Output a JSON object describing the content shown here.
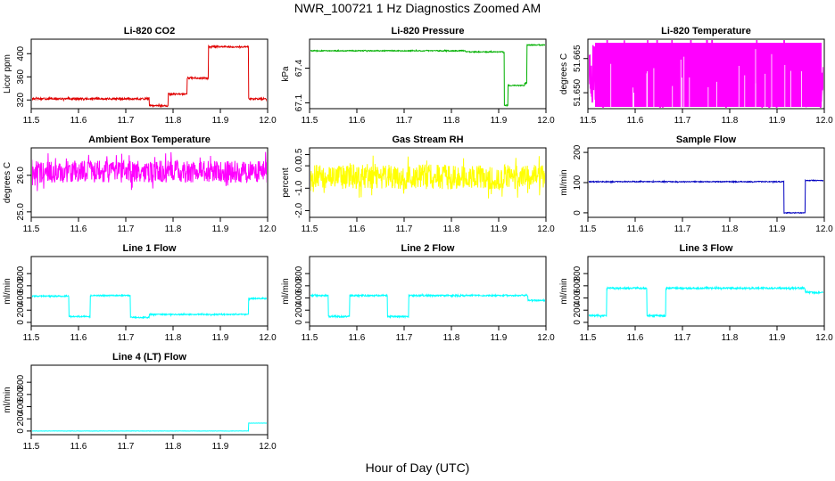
{
  "page": {
    "title": "NWR_100721  1 Hz Diagnostics Zoomed AM",
    "xlabel": "Hour of Day (UTC)"
  },
  "chart_data": [
    {
      "type": "line",
      "title": "Li-820 CO2",
      "ylabel": "Licor ppm",
      "color": "#e00000",
      "xlim": [
        11.5,
        12.0
      ],
      "ylim": [
        305,
        425
      ],
      "yticks": [
        "320",
        "360",
        "400"
      ],
      "xticks": [
        "11.5",
        "11.6",
        "11.7",
        "11.8",
        "11.9",
        "12.0"
      ],
      "steps": [
        [
          11.5,
          322
        ],
        [
          11.75,
          310
        ],
        [
          11.79,
          330
        ],
        [
          11.83,
          358
        ],
        [
          11.875,
          412
        ],
        [
          11.96,
          322
        ],
        [
          12.0,
          322
        ]
      ],
      "noise": 1.5
    },
    {
      "type": "line",
      "title": "Li-820 Pressure",
      "ylabel": "kPa",
      "color": "#00b000",
      "xlim": [
        11.5,
        12.0
      ],
      "ylim": [
        67.05,
        67.65
      ],
      "yticks": [
        "67.1",
        "67.4"
      ],
      "xticks": [
        "11.5",
        "11.6",
        "11.7",
        "11.8",
        "11.9",
        "12.0"
      ],
      "steps": [
        [
          11.5,
          67.55
        ],
        [
          11.83,
          67.54
        ],
        [
          11.91,
          67.53
        ],
        [
          11.912,
          67.08
        ],
        [
          11.92,
          67.25
        ],
        [
          11.955,
          67.27
        ],
        [
          11.96,
          67.6
        ],
        [
          12.0,
          67.6
        ]
      ],
      "noise": 0.004
    },
    {
      "type": "line",
      "title": "Li-820 Temperature",
      "ylabel": "degrees C",
      "color": "#ff00ff",
      "xlim": [
        11.5,
        12.0
      ],
      "ylim": [
        51.643,
        51.6735
      ],
      "yticks": [
        "51.650",
        "51.665"
      ],
      "xticks": [
        "11.5",
        "11.6",
        "11.7",
        "11.8",
        "11.9",
        "12.0"
      ],
      "steps": [
        [
          11.5,
          51.658
        ],
        [
          12.0,
          51.658
        ]
      ],
      "noise": 0.0135,
      "fill": true
    },
    {
      "type": "line",
      "title": "Ambient Box Temperature",
      "ylabel": "degrees C",
      "color": "#ff00ff",
      "xlim": [
        11.5,
        12.0
      ],
      "ylim": [
        24.85,
        26.75
      ],
      "yticks": [
        "25.0",
        "26.0"
      ],
      "xticks": [
        "11.5",
        "11.6",
        "11.7",
        "11.8",
        "11.9",
        "12.0"
      ],
      "steps": [
        [
          11.5,
          26.1
        ],
        [
          12.0,
          26.1
        ]
      ],
      "noise": 0.3
    },
    {
      "type": "line",
      "title": "Gas Stream RH",
      "ylabel": "percent",
      "color": "#ffff00",
      "xlim": [
        11.5,
        12.0
      ],
      "ylim": [
        -2.3,
        0.8
      ],
      "yticks": [
        "-2.0",
        "-1.0",
        "0.0",
        "0.5"
      ],
      "xticks": [
        "11.5",
        "11.6",
        "11.7",
        "11.8",
        "11.9",
        "12.0"
      ],
      "steps": [
        [
          11.5,
          -0.5
        ],
        [
          12.0,
          -0.5
        ]
      ],
      "noise": 0.55
    },
    {
      "type": "line",
      "title": "Sample Flow",
      "ylabel": "ml/min",
      "color": "#0000c0",
      "xlim": [
        11.5,
        12.0
      ],
      "ylim": [
        -15,
        215
      ],
      "yticks": [
        "0",
        "100",
        "200"
      ],
      "xticks": [
        "11.5",
        "11.6",
        "11.7",
        "11.8",
        "11.9",
        "12.0"
      ],
      "steps": [
        [
          11.5,
          103
        ],
        [
          11.91,
          103
        ],
        [
          11.915,
          0
        ],
        [
          11.955,
          0
        ],
        [
          11.96,
          107
        ],
        [
          12.0,
          103
        ]
      ],
      "noise": 1.5
    },
    {
      "type": "line",
      "title": "Line 1 Flow",
      "ylabel": "ml/min",
      "color": "#00ffff",
      "xlim": [
        11.5,
        12.0
      ],
      "ylim": [
        -60,
        1080
      ],
      "yticks": [
        "0",
        "200",
        "400",
        "600",
        "800"
      ],
      "xticks": [
        "11.5",
        "11.6",
        "11.7",
        "11.8",
        "11.9",
        "12.0"
      ],
      "steps": [
        [
          11.5,
          430
        ],
        [
          11.58,
          95
        ],
        [
          11.625,
          440
        ],
        [
          11.71,
          80
        ],
        [
          11.75,
          130
        ],
        [
          11.955,
          130
        ],
        [
          11.96,
          390
        ],
        [
          12.0,
          390
        ]
      ],
      "noise": 10
    },
    {
      "type": "line",
      "title": "Line 2 Flow",
      "ylabel": "ml/min",
      "color": "#00ffff",
      "xlim": [
        11.5,
        12.0
      ],
      "ylim": [
        -60,
        1080
      ],
      "yticks": [
        "0",
        "200",
        "400",
        "600",
        "800"
      ],
      "xticks": [
        "11.5",
        "11.6",
        "11.7",
        "11.8",
        "11.9",
        "12.0"
      ],
      "steps": [
        [
          11.5,
          440
        ],
        [
          11.54,
          95
        ],
        [
          11.585,
          440
        ],
        [
          11.665,
          95
        ],
        [
          11.71,
          440
        ],
        [
          11.96,
          440
        ],
        [
          11.962,
          360
        ],
        [
          12.0,
          360
        ]
      ],
      "noise": 12
    },
    {
      "type": "line",
      "title": "Line 3 Flow",
      "ylabel": "ml/min",
      "color": "#00ffff",
      "xlim": [
        11.5,
        12.0
      ],
      "ylim": [
        -60,
        1080
      ],
      "yticks": [
        "0",
        "200",
        "400",
        "600",
        "800"
      ],
      "xticks": [
        "11.5",
        "11.6",
        "11.7",
        "11.8",
        "11.9",
        "12.0"
      ],
      "steps": [
        [
          11.5,
          110
        ],
        [
          11.54,
          560
        ],
        [
          11.625,
          110
        ],
        [
          11.665,
          560
        ],
        [
          11.955,
          560
        ],
        [
          11.96,
          490
        ],
        [
          12.0,
          490
        ]
      ],
      "noise": 14
    },
    {
      "type": "line",
      "title": "Line 4 (LT) Flow",
      "ylabel": "ml/min",
      "color": "#00ffff",
      "xlim": [
        11.5,
        12.0
      ],
      "ylim": [
        -60,
        1080
      ],
      "yticks": [
        "0",
        "200",
        "400",
        "600",
        "800"
      ],
      "xticks": [
        "11.5",
        "11.6",
        "11.7",
        "11.8",
        "11.9",
        "12.0"
      ],
      "steps": [
        [
          11.5,
          0
        ],
        [
          11.955,
          0
        ],
        [
          11.96,
          130
        ],
        [
          12.0,
          130
        ]
      ],
      "noise": 2
    }
  ]
}
